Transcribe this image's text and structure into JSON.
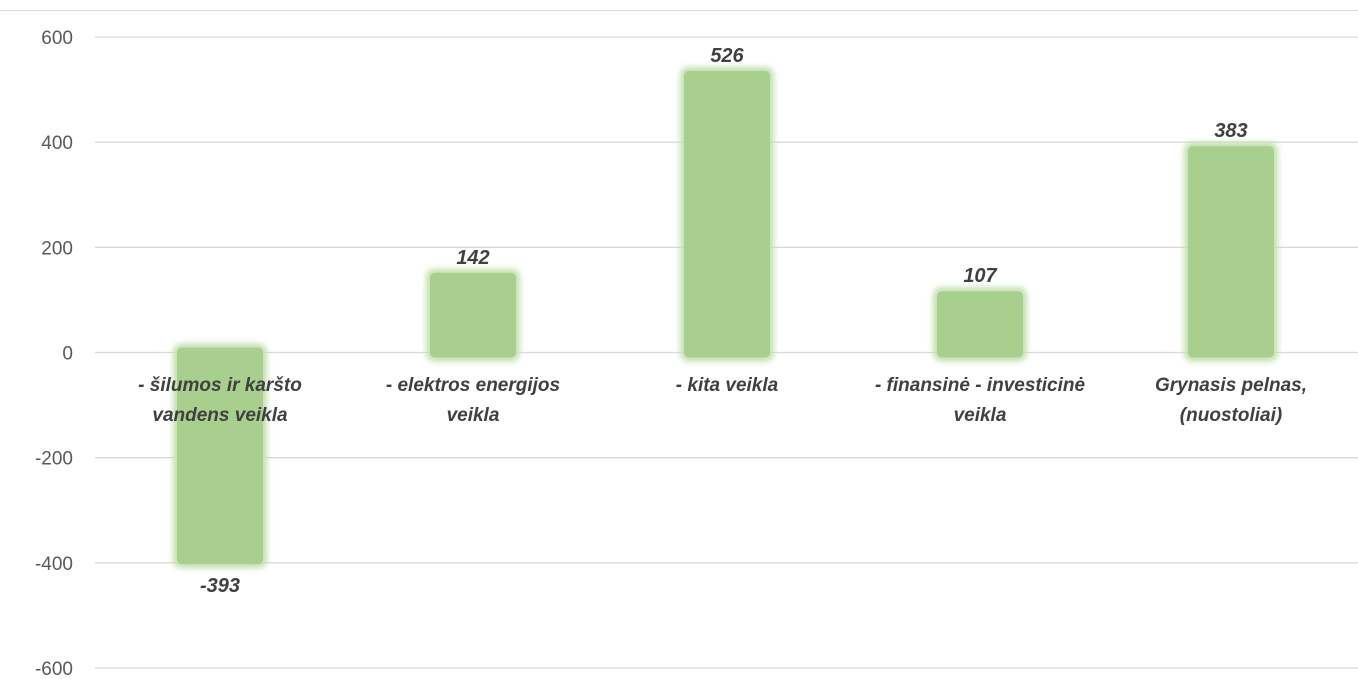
{
  "chart_data": {
    "type": "bar",
    "categories": [
      [
        "-  šilumos ir karšto",
        "vandens veikla"
      ],
      [
        "- elektros energijos",
        "veikla"
      ],
      [
        "- kita veikla"
      ],
      [
        "- finansinė - investicinė",
        "veikla"
      ],
      [
        "Grynasis pelnas,",
        "(nuostoliai)"
      ]
    ],
    "values": [
      -393,
      142,
      526,
      107,
      383
    ],
    "value_labels": [
      "-393",
      "142",
      "526",
      "107",
      "383"
    ],
    "yticks": [
      600,
      400,
      200,
      0,
      -200,
      -400,
      -600
    ],
    "ytick_labels": [
      "600",
      "400",
      "200",
      "0",
      "-200",
      "-400",
      "-600"
    ],
    "ylim": [
      -600,
      600
    ],
    "grid": true,
    "bar_color": "#a9cf8e",
    "bar_glow_color": "#c5e0b2",
    "grid_color": "#d9d9d9"
  }
}
